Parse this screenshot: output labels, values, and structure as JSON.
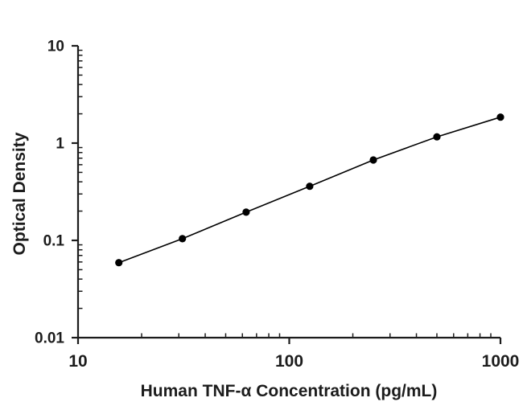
{
  "figure": {
    "background": "#ffffff",
    "ink_color": "#1c1c1c",
    "marker_color": "#000000"
  },
  "chart_data": {
    "type": "line",
    "title": "",
    "xlabel": "Human TNF-α Concentration (pg/mL)",
    "ylabel": "Optical Density",
    "x_scale": "log",
    "y_scale": "log",
    "xlim": [
      10,
      1000
    ],
    "ylim": [
      0.01,
      10
    ],
    "grid": false,
    "legend": "none",
    "x_ticks": {
      "major": [
        10,
        100,
        1000
      ],
      "labels": [
        "10",
        "100",
        "1000"
      ],
      "minor": [
        20,
        30,
        40,
        50,
        60,
        70,
        80,
        90,
        200,
        300,
        400,
        500,
        600,
        700,
        800,
        900
      ]
    },
    "y_ticks": {
      "major": [
        10,
        1,
        0.1,
        0.01
      ],
      "labels": [
        "10",
        "1",
        "0.1",
        "0.01"
      ],
      "minor": [
        9,
        8,
        7,
        6,
        5,
        4,
        3,
        2,
        0.9,
        0.8,
        0.7,
        0.6,
        0.5,
        0.4,
        0.3,
        0.2,
        0.09,
        0.08,
        0.07,
        0.06,
        0.05,
        0.04,
        0.03,
        0.02
      ]
    },
    "series": [
      {
        "name": "standard-curve",
        "marker": "filled-circle",
        "points": [
          {
            "x": 15.6,
            "y": 0.059
          },
          {
            "x": 31.2,
            "y": 0.104
          },
          {
            "x": 62.5,
            "y": 0.195
          },
          {
            "x": 125,
            "y": 0.36
          },
          {
            "x": 250,
            "y": 0.67
          },
          {
            "x": 500,
            "y": 1.16
          },
          {
            "x": 1000,
            "y": 1.85
          }
        ]
      }
    ]
  }
}
